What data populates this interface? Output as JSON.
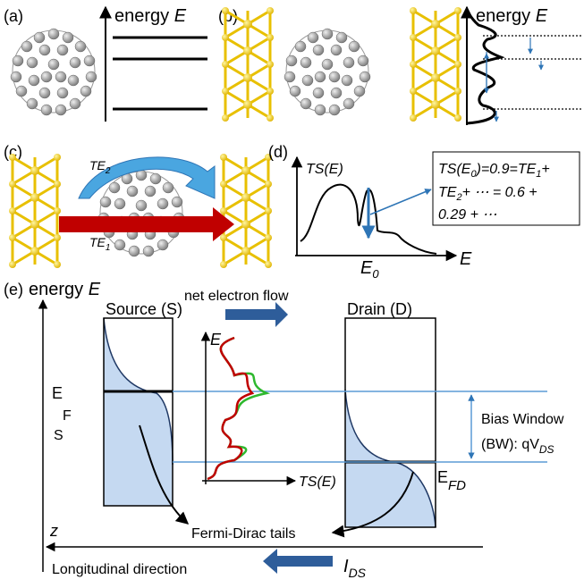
{
  "panel_a": {
    "label": "(a)",
    "axis_word": "energy",
    "axis_symbol": "E"
  },
  "panel_b": {
    "label": "(b)",
    "axis_word": "energy",
    "axis_symbol": "E"
  },
  "panel_c": {
    "label": "(c)",
    "te2": {
      "text": "TE",
      "sub": "2"
    },
    "te1": {
      "text": "TE",
      "sub": "1"
    }
  },
  "panel_d": {
    "label": "(d)",
    "y_axis": "TS(E)",
    "x_axis": "E",
    "e0": {
      "text": "E",
      "sub": "0"
    },
    "formula": {
      "line1": [
        "TS(E",
        "0",
        ")=0.9=TE",
        "1",
        "+"
      ],
      "line2": [
        "TE",
        "2",
        "+ ⋯ = 0.6 +"
      ],
      "line3": "0.29 + ⋯"
    }
  },
  "panel_e": {
    "label": "(e)",
    "axis_word": "energy",
    "axis_symbol": "E",
    "flow": "net electron flow",
    "source": "Source (S)",
    "drain": "Drain (D)",
    "efs": [
      "E",
      "F",
      "S"
    ],
    "inset_y": "E",
    "inset_x": "TS(E)",
    "bias_line1": "Bias Window",
    "bias_line2": {
      "text": "(BW): qV",
      "sub": "DS"
    },
    "efd": {
      "text": "E",
      "sub": "FD"
    },
    "z": "z",
    "tails": "Fermi-Dirac tails",
    "longitudinal": "Longitudinal direction",
    "current": {
      "text": "I",
      "sub": "DS"
    }
  }
}
